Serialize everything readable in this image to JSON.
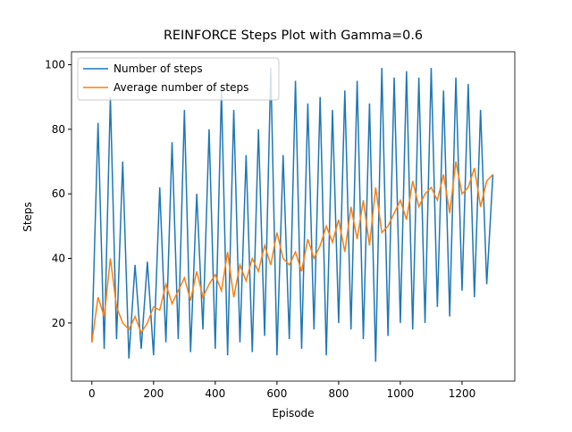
{
  "chart_data": {
    "type": "line",
    "title": "REINFORCE Steps Plot with Gamma=0.6",
    "x_label": "Episode",
    "y_label": "Steps",
    "x": [
      0,
      20,
      40,
      60,
      80,
      100,
      120,
      140,
      160,
      180,
      200,
      220,
      240,
      260,
      280,
      300,
      320,
      340,
      360,
      380,
      400,
      420,
      440,
      460,
      480,
      500,
      520,
      540,
      560,
      580,
      600,
      620,
      640,
      660,
      680,
      700,
      720,
      740,
      760,
      780,
      800,
      820,
      840,
      860,
      880,
      900,
      920,
      940,
      960,
      980,
      1000,
      1020,
      1040,
      1060,
      1080,
      1100,
      1120,
      1140,
      1160,
      1180,
      1200,
      1220,
      1240,
      1260,
      1280,
      1300
    ],
    "series": [
      {
        "name": "Number of steps",
        "color": "#1f77b4",
        "values": [
          14,
          82,
          12,
          90,
          15,
          70,
          9,
          38,
          12,
          39,
          10,
          62,
          14,
          76,
          15,
          86,
          11,
          60,
          18,
          80,
          12,
          92,
          10,
          86,
          14,
          72,
          11,
          80,
          16,
          99,
          10,
          72,
          15,
          95,
          12,
          88,
          18,
          90,
          10,
          86,
          20,
          92,
          18,
          95,
          15,
          88,
          8,
          99,
          16,
          96,
          20,
          98,
          18,
          96,
          20,
          99,
          25,
          92,
          22,
          96,
          30,
          94,
          28,
          86,
          32,
          66
        ]
      },
      {
        "name": "Average number of steps",
        "color": "#ff7f0e",
        "values": [
          14,
          28,
          22,
          40,
          25,
          20,
          18,
          22,
          17,
          20,
          25,
          24,
          32,
          26,
          30,
          34,
          27,
          36,
          28,
          32,
          35,
          30,
          42,
          28,
          38,
          33,
          40,
          36,
          44,
          38,
          48,
          40,
          38,
          42,
          36,
          46,
          40,
          44,
          50,
          45,
          52,
          42,
          56,
          46,
          58,
          44,
          62,
          48,
          50,
          54,
          58,
          52,
          64,
          56,
          60,
          62,
          58,
          66,
          54,
          70,
          60,
          62,
          68,
          56,
          64,
          66
        ]
      }
    ],
    "xlim": [
      -66,
      1371
    ],
    "ylim": [
      2,
      104
    ],
    "xticks": [
      0,
      200,
      400,
      600,
      800,
      1000,
      1200
    ],
    "yticks": [
      20,
      40,
      60,
      80,
      100
    ],
    "legend": "upper left"
  }
}
